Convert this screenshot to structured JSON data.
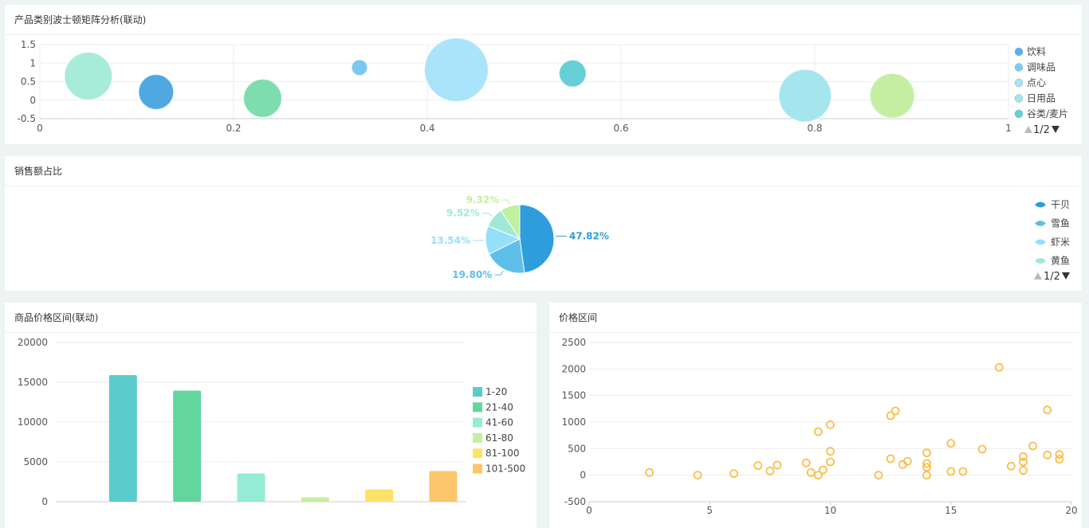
{
  "panels": {
    "boston": {
      "title": "产品类别波士顿矩阵分析(联动)"
    },
    "sales": {
      "title": "销售额占比"
    },
    "price_range": {
      "title": "商品价格区间(联动)"
    },
    "price_scatter": {
      "title": "价格区间"
    }
  },
  "chart_data": [
    {
      "id": "boston",
      "type": "scatter",
      "title": "产品类别波士顿矩阵分析(联动)",
      "xlim": [
        0,
        1
      ],
      "ylim": [
        -0.5,
        1.5
      ],
      "x_ticks": [
        "0",
        "0.2",
        "0.4",
        "0.6",
        "0.8",
        "1"
      ],
      "y_ticks": [
        "1.5",
        "1",
        "0.5",
        "0",
        "-0.5"
      ],
      "legend": [
        "饮料",
        "调味品",
        "点心",
        "日用品",
        "谷类/麦片"
      ],
      "legend_colors": [
        "#5ab1ef",
        "#7ccbf0",
        "#a8e4fa",
        "#a0e6ef",
        "#5fd2d6"
      ],
      "legend_page": "1/2",
      "points": [
        {
          "x": 0.05,
          "y": 0.65,
          "r": 30,
          "color": "#a7ecd9"
        },
        {
          "x": 0.12,
          "y": 0.22,
          "r": 22,
          "color": "#4fa8e0"
        },
        {
          "x": 0.23,
          "y": 0.05,
          "r": 24,
          "color": "#7fdcae"
        },
        {
          "x": 0.33,
          "y": 0.88,
          "r": 10,
          "color": "#7cc6ef"
        },
        {
          "x": 0.43,
          "y": 0.82,
          "r": 40,
          "color": "#a9e4fb"
        },
        {
          "x": 0.55,
          "y": 0.72,
          "r": 17,
          "color": "#66cfd5"
        },
        {
          "x": 0.79,
          "y": 0.12,
          "r": 33,
          "color": "#a5e6ee"
        },
        {
          "x": 0.88,
          "y": 0.12,
          "r": 28,
          "color": "#c6eea3"
        }
      ]
    },
    {
      "id": "sales",
      "type": "pie",
      "title": "销售额占比",
      "slices": [
        {
          "label": "47.82%",
          "value": 47.82,
          "color": "#2e9ddc"
        },
        {
          "label": "19.80%",
          "value": 19.8,
          "color": "#5ebfe9"
        },
        {
          "label": "13.54%",
          "value": 13.54,
          "color": "#95e0f8"
        },
        {
          "label": "9.52%",
          "value": 9.52,
          "color": "#9fe9d8"
        },
        {
          "label": "9.32%",
          "value": 9.32,
          "color": "#c1f0a0"
        }
      ],
      "legend": [
        "干贝",
        "雪鱼",
        "虾米",
        "黄鱼"
      ],
      "legend_colors": [
        "#2e9ddc",
        "#5ebfe9",
        "#95e0f8",
        "#9fe9d8"
      ],
      "legend_page": "1/2"
    },
    {
      "id": "price_range",
      "type": "bar",
      "title": "商品价格区间(联动)",
      "categories": [
        "1-20",
        "21-40",
        "41-60",
        "61-80",
        "81-100",
        "101-500"
      ],
      "values": [
        15900,
        13950,
        3550,
        550,
        1550,
        3850
      ],
      "colors": [
        "#5bcbcb",
        "#62d69e",
        "#95ecd5",
        "#c4efa0",
        "#fbe369",
        "#fdc66a"
      ],
      "ylim": [
        0,
        20000
      ],
      "y_ticks": [
        "20000",
        "15000",
        "10000",
        "5000",
        "0"
      ]
    },
    {
      "id": "price_scatter",
      "type": "scatter",
      "title": "价格区间",
      "xlim": [
        0,
        20
      ],
      "ylim": [
        -500,
        2500
      ],
      "x_ticks": [
        "0",
        "5",
        "10",
        "15",
        "20"
      ],
      "y_ticks": [
        "2500",
        "2000",
        "1500",
        "1000",
        "500",
        "0",
        "-500"
      ],
      "color": "#fbbd4b",
      "points": [
        [
          2.5,
          50
        ],
        [
          4.5,
          0
        ],
        [
          6,
          30
        ],
        [
          7,
          180
        ],
        [
          7.5,
          80
        ],
        [
          7.8,
          190
        ],
        [
          9,
          230
        ],
        [
          9.2,
          50
        ],
        [
          9.5,
          820
        ],
        [
          9.5,
          0
        ],
        [
          9.7,
          100
        ],
        [
          10,
          950
        ],
        [
          10,
          450
        ],
        [
          10,
          250
        ],
        [
          12,
          0
        ],
        [
          12.5,
          1120
        ],
        [
          12.5,
          310
        ],
        [
          12.7,
          1210
        ],
        [
          13,
          200
        ],
        [
          13.2,
          260
        ],
        [
          14,
          420
        ],
        [
          14,
          220
        ],
        [
          14,
          150
        ],
        [
          14,
          0
        ],
        [
          15,
          600
        ],
        [
          15,
          70
        ],
        [
          15.5,
          70
        ],
        [
          16.3,
          490
        ],
        [
          17,
          2030
        ],
        [
          17.5,
          170
        ],
        [
          18,
          350
        ],
        [
          18,
          250
        ],
        [
          18,
          90
        ],
        [
          18.4,
          550
        ],
        [
          19,
          1230
        ],
        [
          19,
          380
        ],
        [
          19.5,
          390
        ],
        [
          19.5,
          300
        ]
      ]
    }
  ]
}
